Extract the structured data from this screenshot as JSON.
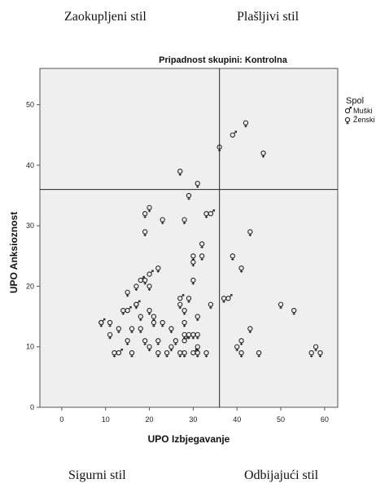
{
  "quadrant_labels": {
    "top_left": "Zaokupljeni stil",
    "top_right": "Plašljivi stil",
    "bottom_left": "Sigurni stil",
    "bottom_right": "Odbijajući stil"
  },
  "chart_data": {
    "type": "scatter",
    "title": "Pripadnost skupini: Kontrolna",
    "xlabel": "UPO Izbjegavanje",
    "ylabel": "UPO Anksioznost",
    "xlim": [
      -5,
      63
    ],
    "ylim": [
      0,
      56
    ],
    "xticks": [
      0,
      10,
      20,
      30,
      40,
      50,
      60
    ],
    "yticks": [
      0,
      10,
      20,
      30,
      40,
      50
    ],
    "reference_lines": {
      "x": 36,
      "y": 36
    },
    "legend": {
      "title": "Spol",
      "placement": "right",
      "entries": [
        "Muški",
        "Ženski"
      ]
    },
    "background_color": "#efefef",
    "series": [
      {
        "name": "Muški",
        "marker": "male",
        "points": [
          [
            9,
            14
          ],
          [
            15,
            16
          ],
          [
            17,
            17
          ],
          [
            18,
            21
          ],
          [
            20,
            22
          ],
          [
            27,
            18
          ],
          [
            28,
            11
          ],
          [
            30,
            9
          ],
          [
            34,
            32
          ],
          [
            38,
            18
          ],
          [
            39,
            45
          ],
          [
            13,
            9
          ]
        ]
      },
      {
        "name": "Ženski",
        "marker": "female",
        "points": [
          [
            9,
            14
          ],
          [
            11,
            14
          ],
          [
            11,
            12
          ],
          [
            12,
            9
          ],
          [
            13,
            13
          ],
          [
            14,
            16
          ],
          [
            15,
            19
          ],
          [
            15,
            11
          ],
          [
            16,
            13
          ],
          [
            16,
            9
          ],
          [
            17,
            17
          ],
          [
            17,
            20
          ],
          [
            18,
            13
          ],
          [
            18,
            15
          ],
          [
            19,
            29
          ],
          [
            19,
            32
          ],
          [
            19,
            11
          ],
          [
            19,
            21
          ],
          [
            20,
            33
          ],
          [
            20,
            16
          ],
          [
            20,
            20
          ],
          [
            20,
            10
          ],
          [
            21,
            14
          ],
          [
            21,
            15
          ],
          [
            22,
            23
          ],
          [
            22,
            9
          ],
          [
            22,
            11
          ],
          [
            23,
            31
          ],
          [
            23,
            14
          ],
          [
            24,
            9
          ],
          [
            25,
            10
          ],
          [
            25,
            13
          ],
          [
            26,
            11
          ],
          [
            27,
            39
          ],
          [
            27,
            17
          ],
          [
            27,
            9
          ],
          [
            28,
            16
          ],
          [
            28,
            31
          ],
          [
            28,
            14
          ],
          [
            28,
            12
          ],
          [
            28,
            9
          ],
          [
            29,
            35
          ],
          [
            29,
            18
          ],
          [
            29,
            12
          ],
          [
            30,
            25
          ],
          [
            30,
            24
          ],
          [
            30,
            21
          ],
          [
            30,
            12
          ],
          [
            31,
            37
          ],
          [
            31,
            15
          ],
          [
            31,
            12
          ],
          [
            31,
            10
          ],
          [
            31,
            9
          ],
          [
            32,
            27
          ],
          [
            32,
            25
          ],
          [
            33,
            32
          ],
          [
            33,
            9
          ],
          [
            34,
            17
          ],
          [
            36,
            43
          ],
          [
            37,
            18
          ],
          [
            39,
            25
          ],
          [
            40,
            10
          ],
          [
            41,
            23
          ],
          [
            41,
            9
          ],
          [
            41,
            11
          ],
          [
            42,
            47
          ],
          [
            43,
            29
          ],
          [
            43,
            13
          ],
          [
            45,
            9
          ],
          [
            46,
            42
          ],
          [
            50,
            17
          ],
          [
            53,
            16
          ],
          [
            57,
            9
          ],
          [
            58,
            10
          ],
          [
            59,
            9
          ]
        ]
      }
    ]
  }
}
